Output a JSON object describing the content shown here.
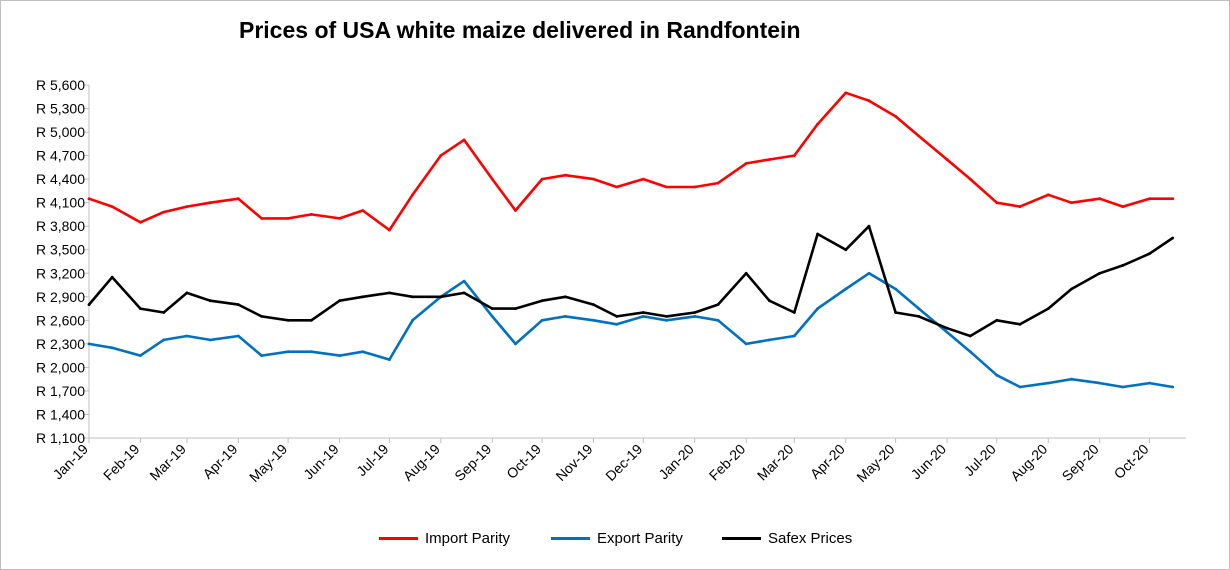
{
  "chart_data": {
    "type": "line",
    "title": "Prices of USA white maize delivered in Randfontein",
    "xlabel": "",
    "ylabel": "",
    "ylim": [
      1100,
      5600
    ],
    "y_ticks": [
      "R 1,100",
      "R 1,400",
      "R 1,700",
      "R 2,000",
      "R 2,300",
      "R 2,600",
      "R 2,900",
      "R 3,200",
      "R 3,500",
      "R 3,800",
      "R 4,100",
      "R 4,400",
      "R 4,700",
      "R 5,000",
      "R 5,300",
      "R 5,600"
    ],
    "x_ticks": [
      "Jan-19",
      "Feb-19",
      "Mar-19",
      "Apr-19",
      "May-19",
      "Jun-19",
      "Jul-19",
      "Aug-19",
      "Sep-19",
      "Oct-19",
      "Nov-19",
      "Dec-19",
      "Jan-20",
      "Feb-20",
      "Mar-20",
      "Apr-20",
      "May-20",
      "Jun-20",
      "Jul-20",
      "Aug-20",
      "Sep-20",
      "Oct-20"
    ],
    "grid": false,
    "legend_position": "bottom",
    "x": [
      "2019-01-01",
      "2019-01-15",
      "2019-02-01",
      "2019-02-15",
      "2019-03-01",
      "2019-03-15",
      "2019-04-01",
      "2019-04-15",
      "2019-05-01",
      "2019-05-15",
      "2019-06-01",
      "2019-06-15",
      "2019-07-01",
      "2019-07-15",
      "2019-08-01",
      "2019-08-15",
      "2019-09-01",
      "2019-09-15",
      "2019-10-01",
      "2019-10-15",
      "2019-11-01",
      "2019-11-15",
      "2019-12-01",
      "2019-12-15",
      "2020-01-01",
      "2020-01-15",
      "2020-02-01",
      "2020-02-15",
      "2020-03-01",
      "2020-03-15",
      "2020-04-01",
      "2020-04-15",
      "2020-05-01",
      "2020-05-15",
      "2020-06-01",
      "2020-06-15",
      "2020-07-01",
      "2020-07-15",
      "2020-08-01",
      "2020-08-15",
      "2020-09-01",
      "2020-09-15",
      "2020-10-01",
      "2020-10-15"
    ],
    "series": [
      {
        "name": "Import Parity",
        "color": "#ff0000",
        "values": [
          4150,
          4050,
          3850,
          3980,
          4050,
          4100,
          4150,
          3900,
          3900,
          3950,
          3900,
          4000,
          3750,
          4200,
          4700,
          4900,
          4400,
          4000,
          4400,
          4450,
          4400,
          4300,
          4400,
          4300,
          4300,
          4350,
          4600,
          4650,
          4700,
          5100,
          5500,
          5400,
          5200,
          4950,
          4650,
          4400,
          4100,
          4050,
          4200,
          4100,
          4150,
          4050,
          4150,
          4150
        ]
      },
      {
        "name": "Export Parity",
        "color": "#0070c0",
        "values": [
          2300,
          2250,
          2150,
          2350,
          2400,
          2350,
          2400,
          2150,
          2200,
          2200,
          2150,
          2200,
          2100,
          2600,
          2900,
          3100,
          2650,
          2300,
          2600,
          2650,
          2600,
          2550,
          2650,
          2600,
          2650,
          2600,
          2300,
          2350,
          2400,
          2750,
          3000,
          3200,
          3000,
          2750,
          2450,
          2200,
          1900,
          1750,
          1800,
          1850,
          1800,
          1750,
          1800,
          1750
        ]
      },
      {
        "name": "Safex Prices",
        "color": "#000000",
        "values": [
          2800,
          3150,
          2750,
          2700,
          2950,
          2850,
          2800,
          2650,
          2600,
          2600,
          2850,
          2900,
          2950,
          2900,
          2900,
          2950,
          2750,
          2750,
          2850,
          2900,
          2800,
          2650,
          2700,
          2650,
          2700,
          2800,
          3200,
          2850,
          2700,
          3700,
          3500,
          3800,
          2700,
          2650,
          2500,
          2400,
          2600,
          2550,
          2750,
          3000,
          3200,
          3300,
          3450,
          3650
        ]
      }
    ]
  }
}
